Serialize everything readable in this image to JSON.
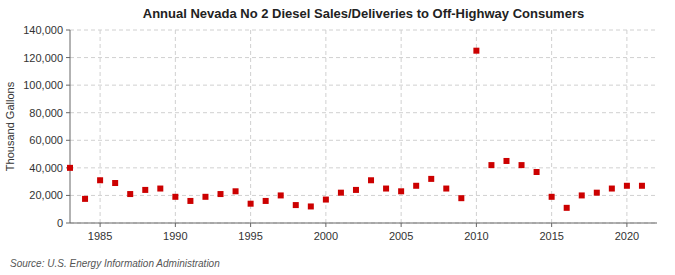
{
  "chart_data": {
    "type": "scatter",
    "title": "Annual Nevada No 2 Diesel Sales/Deliveries to Off-Highway Consumers",
    "y_label": "Thousand Gallons",
    "annotations": [
      "Source: U.S. Energy Information Administration"
    ],
    "x": [
      1983,
      1984,
      1985,
      1986,
      1987,
      1988,
      1989,
      1990,
      1991,
      1992,
      1993,
      1994,
      1995,
      1996,
      1997,
      1998,
      1999,
      2000,
      2001,
      2002,
      2003,
      2004,
      2005,
      2006,
      2007,
      2008,
      2009,
      2010,
      2011,
      2012,
      2013,
      2014,
      2015,
      2016,
      2017,
      2018,
      2019,
      2020,
      2021
    ],
    "values": [
      40000,
      17500,
      31000,
      29000,
      21000,
      24000,
      25000,
      19000,
      16000,
      19000,
      21000,
      23000,
      14000,
      16000,
      20000,
      13000,
      12000,
      17000,
      22000,
      24000,
      31000,
      25000,
      23000,
      27000,
      32000,
      25000,
      18000,
      125000,
      42000,
      45000,
      42000,
      37000,
      19000,
      11000,
      20000,
      22000,
      25000,
      27000,
      27000
    ],
    "color": "#cc0000",
    "marker": "square",
    "xlim": [
      1983,
      2022
    ],
    "ylim": [
      0,
      140000
    ],
    "xticks": [
      1985,
      1990,
      1995,
      2000,
      2005,
      2010,
      2015,
      2020
    ],
    "yticks": [
      0,
      {
        "value": 20000,
        "label": "20,000"
      },
      {
        "value": 40000,
        "label": "40,000"
      },
      {
        "value": 60000,
        "label": "60,000"
      },
      {
        "value": 80000,
        "label": "80,000"
      },
      {
        "value": 100000,
        "label": "100,000"
      },
      {
        "value": 120000,
        "label": "120,000"
      },
      {
        "value": 140000,
        "label": "140,000"
      }
    ],
    "grid": true
  }
}
